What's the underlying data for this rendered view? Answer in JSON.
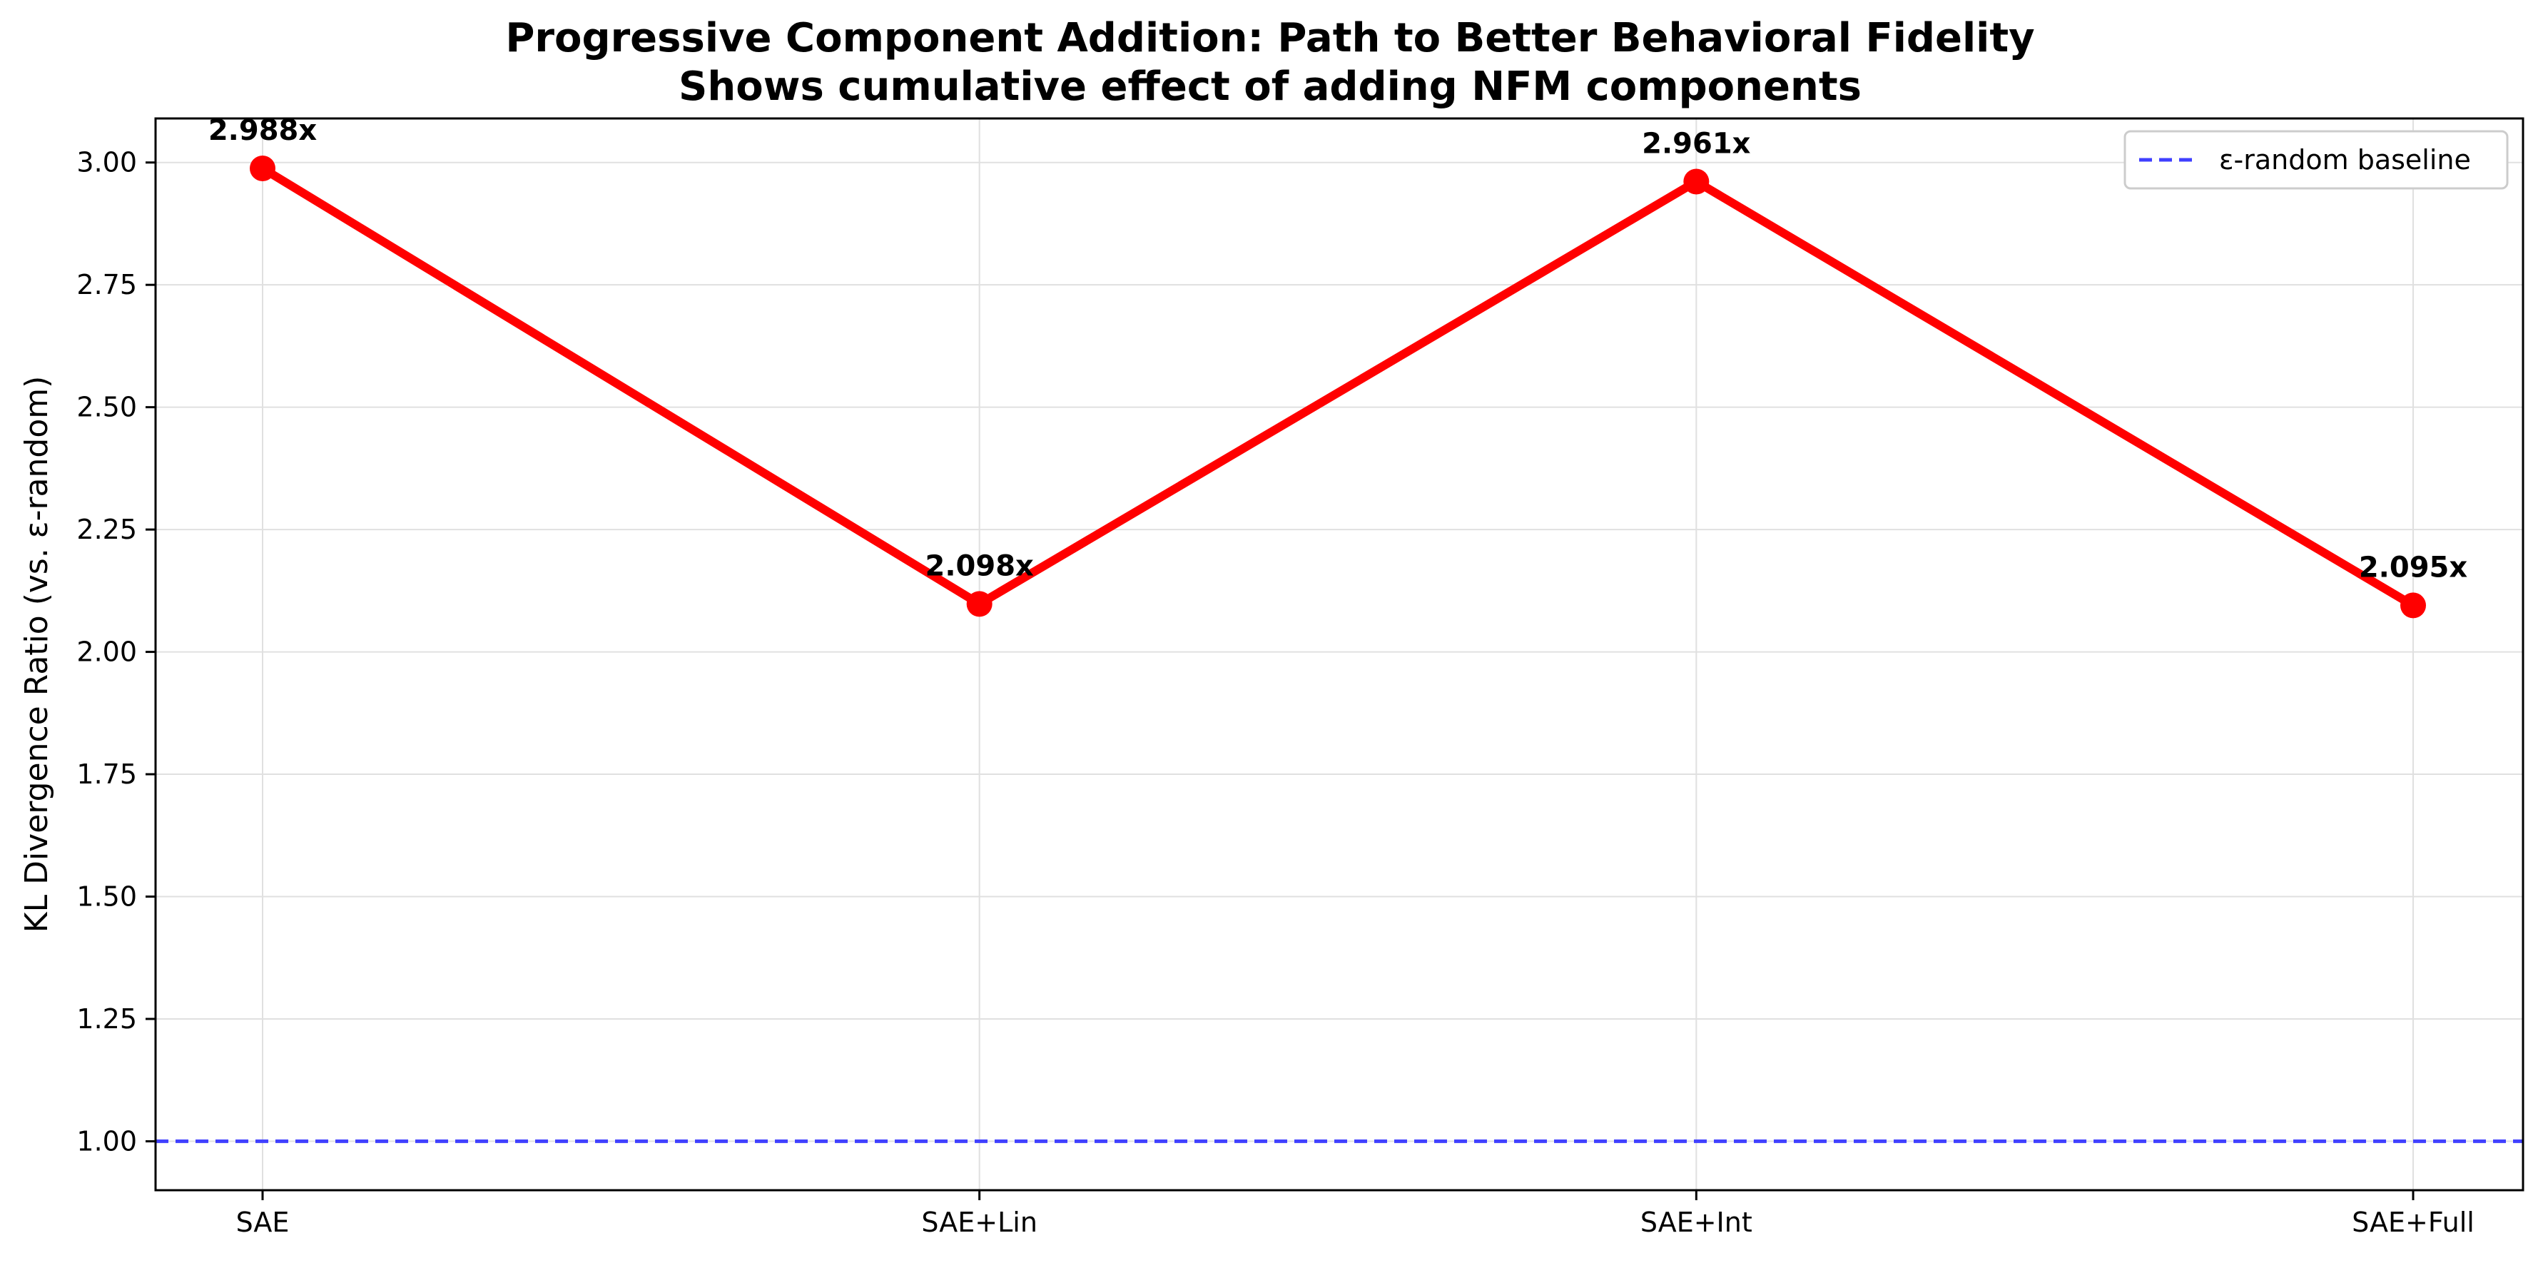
{
  "chart_data": {
    "type": "line",
    "title": "Progressive Component Addition: Path to Better Behavioral Fidelity",
    "subtitle": "Shows cumulative effect of adding NFM components",
    "xlabel": "",
    "ylabel": "KL Divergence Ratio (vs. ε-random)",
    "categories": [
      "SAE",
      "SAE+Lin",
      "SAE+Int",
      "SAE+Full"
    ],
    "values": [
      2.988,
      2.098,
      2.961,
      2.095
    ],
    "data_labels": [
      "2.988x",
      "2.098x",
      "2.961x",
      "2.095x"
    ],
    "ylim": [
      0.9,
      3.09
    ],
    "yticks": [
      "1.00",
      "1.25",
      "1.50",
      "1.75",
      "2.00",
      "2.25",
      "2.50",
      "2.75",
      "3.00"
    ],
    "baseline": {
      "name": "ε-random baseline",
      "value": 1.0
    },
    "grid": true,
    "legend_position": "top-right",
    "colors": {
      "series": "#ff0000",
      "baseline": "#4040ff",
      "grid": "#e0e0e0"
    }
  }
}
